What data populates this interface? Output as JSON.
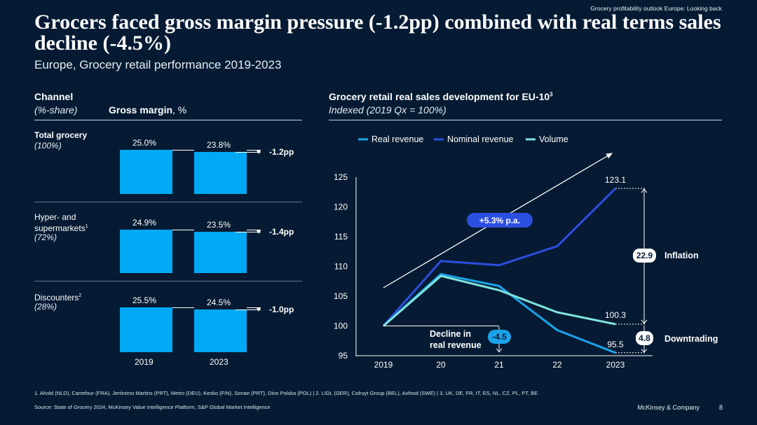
{
  "header": {
    "top_subtitle": "Grocery profitability outlook Europe: Looking back",
    "title": "Grocers faced gross margin pressure (-1.2pp) combined with real terms sales decline (-4.5%)",
    "subtitle": "Europe, Grocery retail performance 2019-2023"
  },
  "left_panel": {
    "col1_header": "Channel",
    "col1_sub": "(%-share)",
    "col2_header_bold": "Gross margin",
    "col2_header_rest": ", %",
    "years": [
      "2019",
      "2023"
    ],
    "rows": [
      {
        "name": "Total grocery",
        "name_sup": "",
        "share": "(100%)",
        "v2019": 25.0,
        "v2023": 23.8,
        "l2019": "25.0%",
        "l2023": "23.8%",
        "delta": "-1.2pp"
      },
      {
        "name": "Hyper- and supermarkets",
        "name_sup": "1",
        "share": "(72%)",
        "v2019": 24.9,
        "v2023": 23.5,
        "l2019": "24.9%",
        "l2023": "23.5%",
        "delta": "-1.4pp"
      },
      {
        "name": "Discounters",
        "name_sup": "2",
        "share": "(28%)",
        "v2019": 25.5,
        "v2023": 24.5,
        "l2019": "25.5%",
        "l2023": "24.5%",
        "delta": "-1.0pp"
      }
    ]
  },
  "right_panel": {
    "header": "Grocery retail real sales development for EU-10",
    "header_sup": "3",
    "subheader": "Indexed (2019 Qx = 100%)"
  },
  "chart_data": {
    "type": "line",
    "title": "Grocery retail real sales development for EU-10",
    "x": [
      "2019",
      "20",
      "21",
      "22",
      "2023"
    ],
    "ylim": [
      95,
      125
    ],
    "yticks": [
      95,
      100,
      105,
      110,
      115,
      120,
      125
    ],
    "series": [
      {
        "name": "Real revenue",
        "color": "#1aa3ea",
        "values": [
          100,
          108.7,
          106.7,
          99.3,
          95.5
        ]
      },
      {
        "name": "Nominal revenue",
        "color": "#2b4fe0",
        "values": [
          100,
          110.9,
          110.2,
          113.4,
          123.1
        ]
      },
      {
        "name": "Volume",
        "color": "#7ee3dc",
        "values": [
          100,
          108.4,
          106.0,
          102.3,
          100.3
        ]
      }
    ],
    "trend_label": "+5.3% p.a.",
    "data_labels": {
      "nominal_end": "123.1",
      "volume_end": "100.3",
      "real_end": "95.5"
    },
    "annotations": {
      "inflation_value": "22.9",
      "inflation_label": "Inflation",
      "downtrading_value": "4.8",
      "downtrading_label": "Downtrading",
      "decline_line1": "Decline in",
      "decline_line2": "real revenue",
      "decline_value": "-4.5"
    }
  },
  "footer": {
    "footnote": "1. Ahold (NLD), Carrefour (FRA), Jerónimo Martins (PRT), Metro (DEU), Kesko (FIN), Sonae (PRT), Dino Polska (POL) | 2. LIDL (GER), Colruyt Group (BEL), Axfood (SWE) | 3. UK, DE, FR, IT, ES, NL, CZ, PL, PT, BE",
    "source": "Source: State of Grocery 2024, McKinsey Value Intelligence Platform, S&P Global Market Intelligence",
    "brand": "McKinsey & Company",
    "page": "8"
  }
}
